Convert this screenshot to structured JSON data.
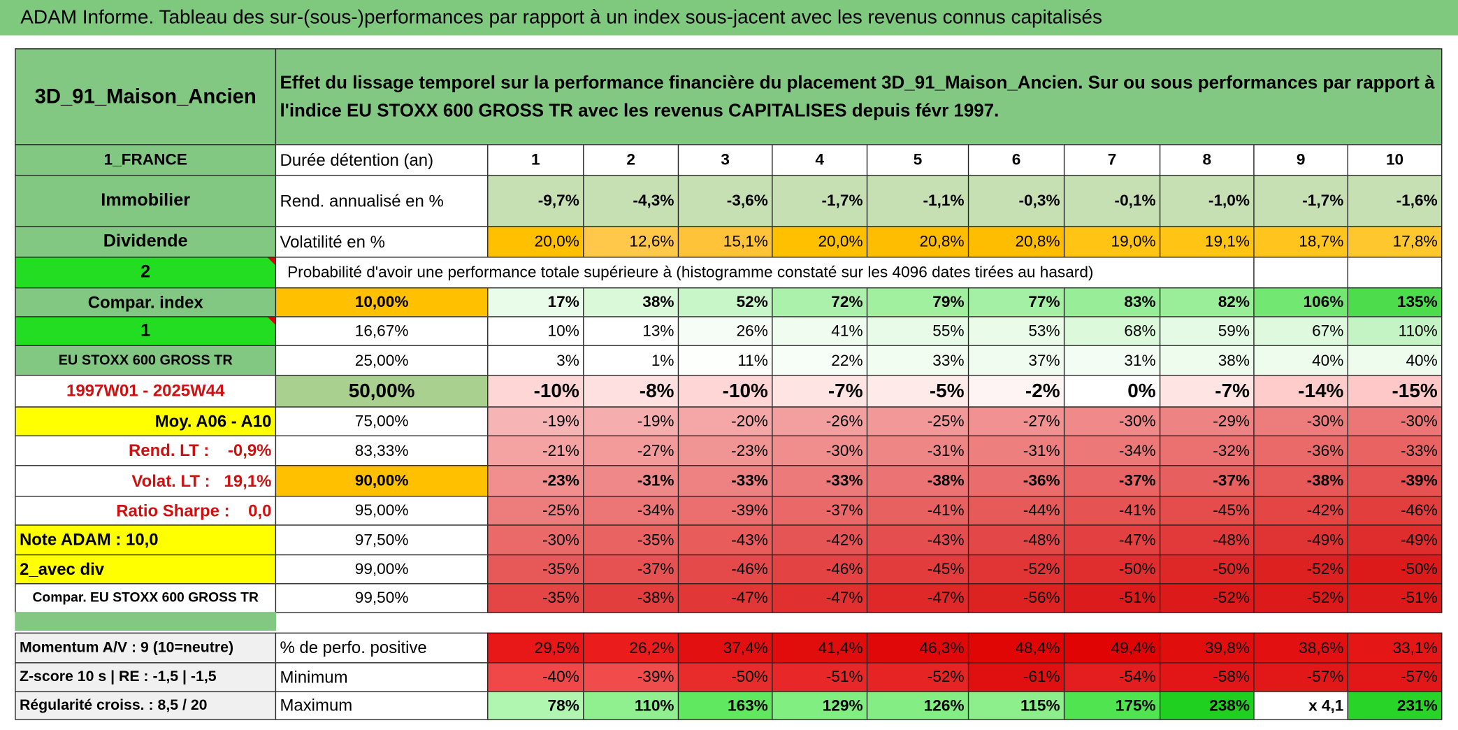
{
  "header": {
    "title": "ADAM Informe. Tableau des sur-(sous-)performances par rapport à un index sous-jacent avec les revenus connus capitalisés"
  },
  "table": {
    "rows": [
      [
        "3D_91_Maison_Ancien",
        "Effet du lissage temporel sur la performance financière du placement 3D_91_Maison_Ancien. Sur ou sous performances par rapport à l'indice EU STOXX 600 GROSS TR avec les revenus CAPITALISES depuis févr 1997."
      ],
      [
        "1_FRANCE",
        "Durée détention (an)",
        "1",
        "2",
        "3",
        "4",
        "5",
        "6",
        "7",
        "8",
        "9",
        "10"
      ],
      [
        "Immobilier",
        "Rend. annualisé en %",
        "-9,7%",
        "-4,3%",
        "-3,6%",
        "-1,7%",
        "-1,1%",
        "-0,3%",
        "-0,1%",
        "-1,0%",
        "-1,7%",
        "-1,6%"
      ],
      [
        "Dividende",
        "Volatilité en %",
        "20,0%",
        "12,6%",
        "15,1%",
        "20,0%",
        "20,8%",
        "20,8%",
        "19,0%",
        "19,1%",
        "18,7%",
        "17,8%"
      ],
      [
        "2",
        "Probabilité d'avoir une performance totale supérieure à (histogramme constaté sur les 4096 dates tirées au hasard)"
      ],
      [
        "Compar. index",
        "10,00%",
        "17%",
        "38%",
        "52%",
        "72%",
        "79%",
        "77%",
        "83%",
        "82%",
        "106%",
        "135%"
      ],
      [
        "1",
        "16,67%",
        "10%",
        "13%",
        "26%",
        "41%",
        "55%",
        "53%",
        "68%",
        "59%",
        "67%",
        "110%"
      ],
      [
        "EU STOXX 600 GROSS TR",
        "25,00%",
        "3%",
        "1%",
        "11%",
        "22%",
        "33%",
        "37%",
        "31%",
        "38%",
        "40%",
        "40%"
      ],
      [
        "1997W01 - 2025W44",
        "50,00%",
        "-10%",
        "-8%",
        "-10%",
        "-7%",
        "-5%",
        "-2%",
        "0%",
        "-7%",
        "-14%",
        "-15%"
      ],
      [
        "Moy. A06 - A10",
        "75,00%",
        "-19%",
        "-19%",
        "-20%",
        "-26%",
        "-25%",
        "-27%",
        "-30%",
        "-29%",
        "-30%",
        "-30%"
      ],
      [
        "Rend. LT :    -0,9%",
        "83,33%",
        "-21%",
        "-27%",
        "-23%",
        "-30%",
        "-31%",
        "-31%",
        "-34%",
        "-32%",
        "-36%",
        "-33%"
      ],
      [
        "Volat. LT :   19,1%",
        "90,00%",
        "-23%",
        "-31%",
        "-33%",
        "-33%",
        "-38%",
        "-36%",
        "-37%",
        "-37%",
        "-38%",
        "-39%"
      ],
      [
        "Ratio Sharpe :    0,0",
        "95,00%",
        "-25%",
        "-34%",
        "-39%",
        "-37%",
        "-41%",
        "-44%",
        "-41%",
        "-45%",
        "-42%",
        "-46%"
      ],
      [
        "Note ADAM : 10,0",
        "97,50%",
        "-30%",
        "-35%",
        "-43%",
        "-42%",
        "-43%",
        "-48%",
        "-47%",
        "-48%",
        "-49%",
        "-49%"
      ],
      [
        "2_avec div",
        "99,00%",
        "-35%",
        "-37%",
        "-46%",
        "-46%",
        "-45%",
        "-52%",
        "-50%",
        "-50%",
        "-52%",
        "-50%"
      ],
      [
        "Compar. EU STOXX 600 GROSS TR",
        "99,50%",
        "-35%",
        "-38%",
        "-47%",
        "-47%",
        "-47%",
        "-56%",
        "-51%",
        "-52%",
        "-52%",
        "-51%"
      ],
      [
        "Momentum A/V : 9 (10=neutre)",
        "% de perfo. positive",
        "29,5%",
        "26,2%",
        "37,4%",
        "41,4%",
        "46,3%",
        "48,4%",
        "49,4%",
        "39,8%",
        "38,6%",
        "33,1%"
      ],
      [
        "Z-score 10 s | RE : -1,5 | -1,5",
        "Minimum",
        "-40%",
        "-39%",
        "-50%",
        "-51%",
        "-52%",
        "-61%",
        "-54%",
        "-58%",
        "-57%",
        "-57%"
      ],
      [
        "Régularité croiss. : 8,5 / 20",
        "Maximum",
        "78%",
        "110%",
        "163%",
        "129%",
        "126%",
        "115%",
        "175%",
        "238%",
        "x 4,1",
        "231%"
      ]
    ]
  }
}
